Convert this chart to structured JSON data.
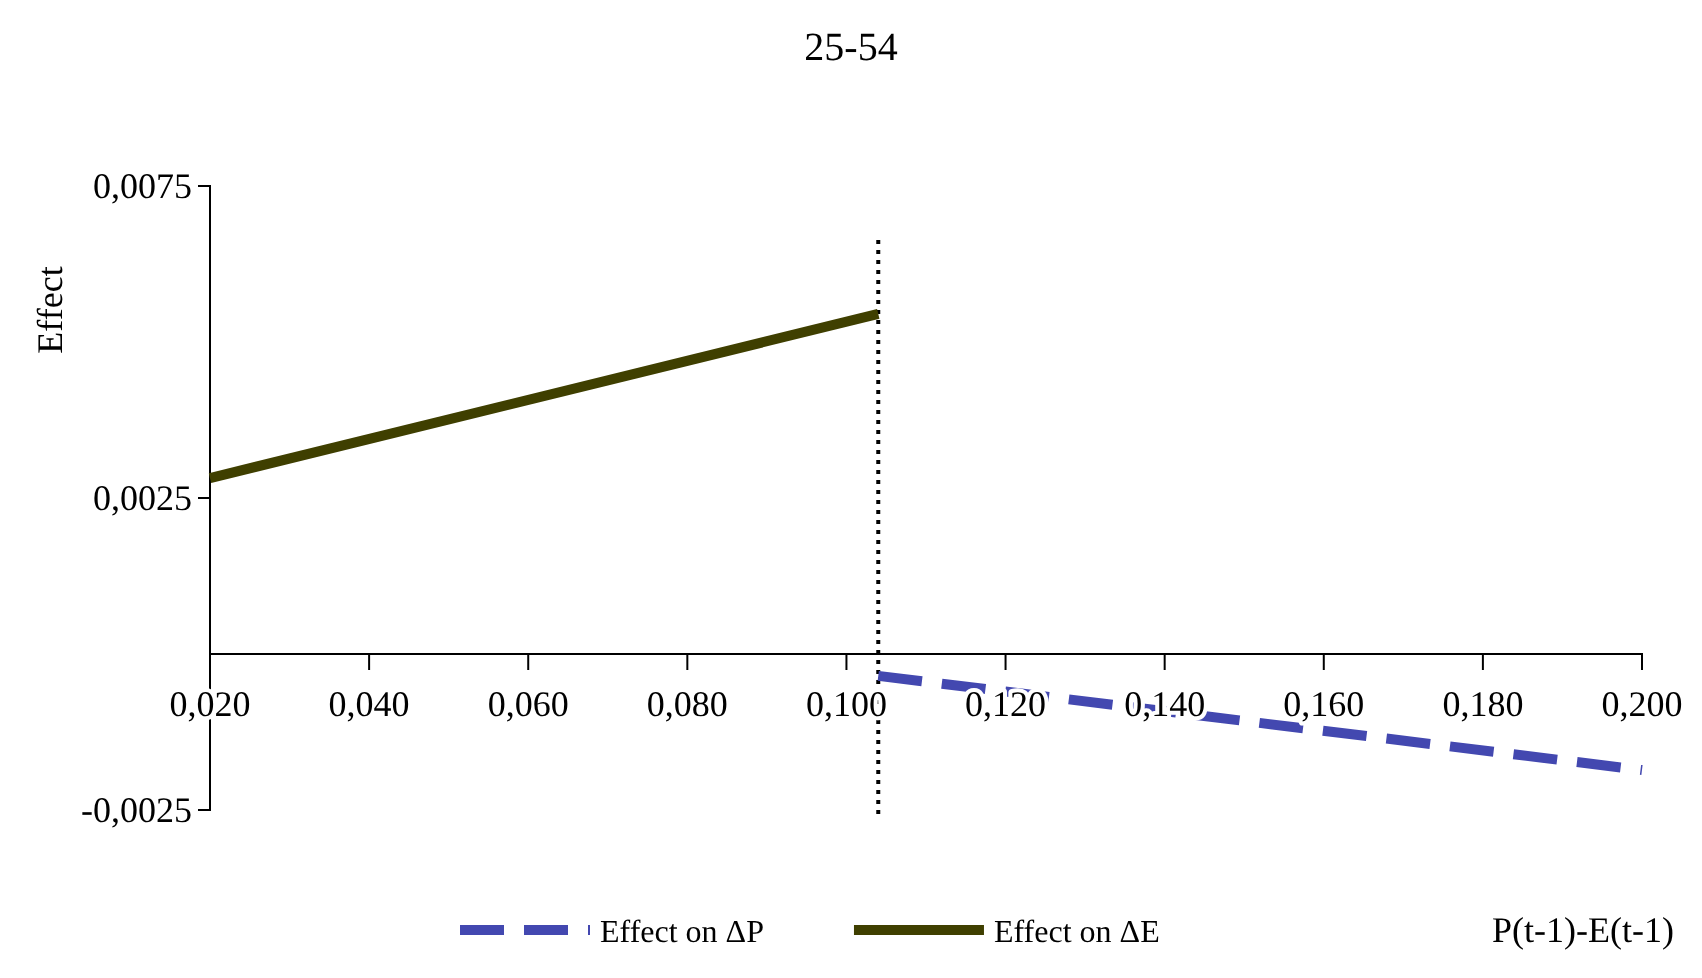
{
  "chart_data": {
    "type": "line",
    "title": "25-54",
    "xlabel": "P(t-1)-E(t-1)",
    "ylabel": "Effect",
    "xlim": [
      0.02,
      0.2
    ],
    "xticks": [
      {
        "value": 0.02,
        "label": "0,020"
      },
      {
        "value": 0.04,
        "label": "0,040"
      },
      {
        "value": 0.06,
        "label": "0,060"
      },
      {
        "value": 0.08,
        "label": "0,080"
      },
      {
        "value": 0.1,
        "label": "0,100"
      },
      {
        "value": 0.12,
        "label": "0,120"
      },
      {
        "value": 0.14,
        "label": "0,140"
      },
      {
        "value": 0.16,
        "label": "0,160"
      },
      {
        "value": 0.18,
        "label": "0,180"
      },
      {
        "value": 0.2,
        "label": "0,200"
      }
    ],
    "ylim": [
      -0.0025,
      0.0075
    ],
    "yticks": [
      {
        "value": -0.0025,
        "label": "-0,0025"
      },
      {
        "value": 0.0025,
        "label": "0,0025"
      },
      {
        "value": 0.0075,
        "label": "0,0075"
      }
    ],
    "series": [
      {
        "name": "Effect on ΔP",
        "color": "#4348b0",
        "line_style": "dashed",
        "x": [
          0.104,
          0.2
        ],
        "values": [
          -0.00035,
          -0.00186
        ]
      },
      {
        "name": "Effect on ΔE",
        "color": "#3f3f00",
        "line_style": "solid",
        "x": [
          0.02,
          0.104
        ],
        "values": [
          0.00282,
          0.00545
        ]
      }
    ],
    "ref_lines": [
      {
        "axis": "x",
        "value": 0.104,
        "line_style": "dotted",
        "color": "#000000"
      }
    ],
    "legend": "bottom",
    "grid": false,
    "marker": "none"
  }
}
